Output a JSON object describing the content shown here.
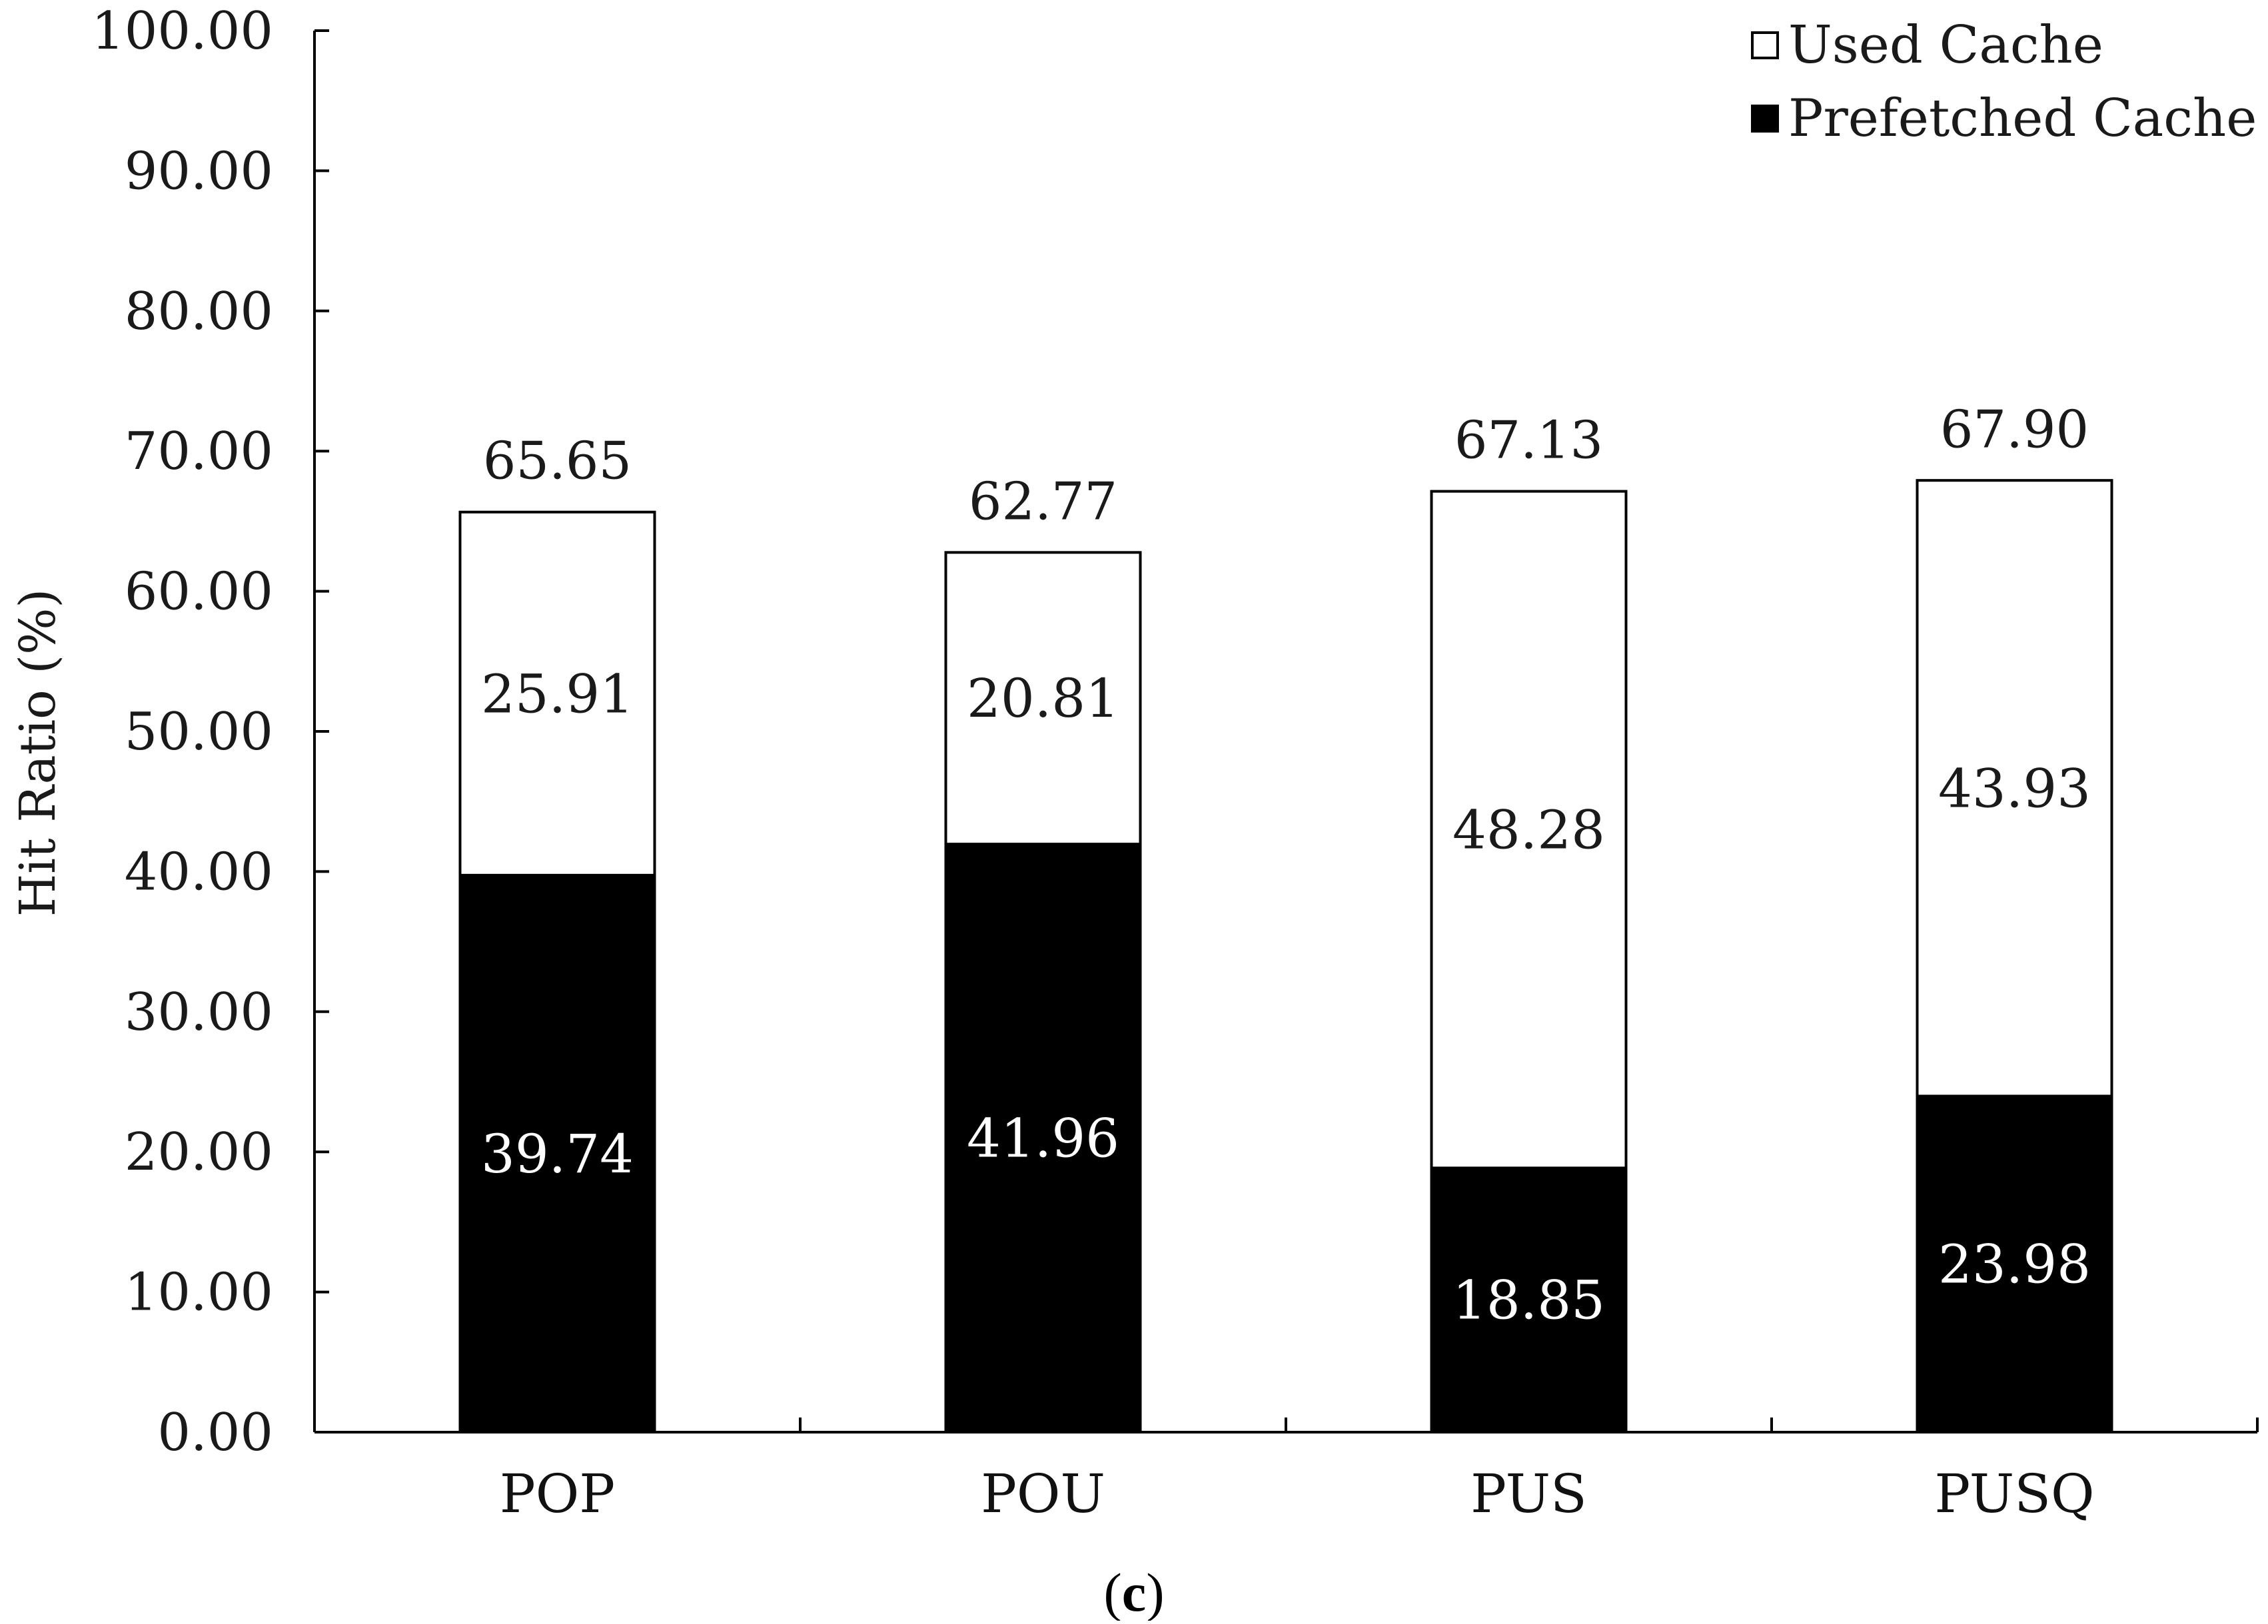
{
  "caption": {
    "open": "(",
    "letter": "c",
    "close": ")"
  },
  "chart_data": {
    "type": "bar",
    "stacked": true,
    "categories": [
      "POP",
      "POU",
      "PUS",
      "PUSQ"
    ],
    "series": [
      {
        "name": "Prefetched Cache",
        "values": [
          39.74,
          41.96,
          18.85,
          23.98
        ],
        "color": "#000000"
      },
      {
        "name": "Used Cache",
        "values": [
          25.91,
          20.81,
          48.28,
          43.93
        ],
        "color": "#ffffff"
      }
    ],
    "totals": [
      65.65,
      62.77,
      67.13,
      67.9
    ],
    "series_labels": [
      [
        "39.74",
        "41.96",
        "18.85",
        "23.98"
      ],
      [
        "25.91",
        "20.81",
        "48.28",
        "43.93"
      ]
    ],
    "total_labels": [
      "65.65",
      "62.77",
      "67.13",
      "67.90"
    ],
    "ylabel": "Hit Ratio (%)",
    "xlabel": "",
    "ylim": [
      0,
      100
    ],
    "yticks": [
      0,
      10,
      20,
      30,
      40,
      50,
      60,
      70,
      80,
      90,
      100
    ],
    "ytick_labels": [
      "0.00",
      "10.00",
      "20.00",
      "30.00",
      "40.00",
      "50.00",
      "60.00",
      "70.00",
      "80.00",
      "90.00",
      "100.00"
    ],
    "legend": {
      "position": "top-right",
      "entries": [
        {
          "label": "Used Cache",
          "swatch": "#ffffff"
        },
        {
          "label": "Prefetched Cache",
          "swatch": "#000000"
        }
      ]
    },
    "grid": false
  }
}
